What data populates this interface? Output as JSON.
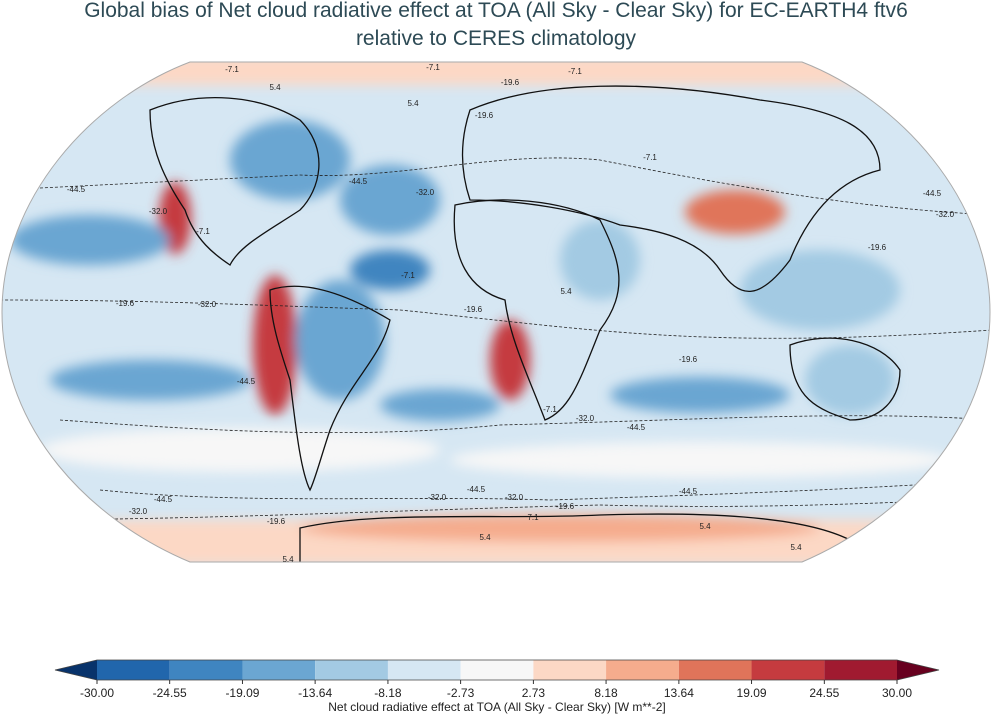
{
  "title": [
    "Global bias of Net cloud radiative effect at TOA (All Sky - Clear Sky) for EC-EARTH4 ftv6",
    "relative to CERES climatology"
  ],
  "map": {
    "contour_labels": [
      -7.1,
      -7.1,
      -7.1,
      5.4,
      5.4,
      -19.6,
      -19.6,
      -7.1,
      -44.5,
      {
        "value": -32,
        "label": "-32.0"
      },
      -44.5,
      {
        "value": -32,
        "label": "-32.0"
      },
      -7.1,
      -44.5,
      {
        "value": -32,
        "label": "-32.0"
      },
      -19.6,
      -19.6,
      {
        "value": -32,
        "label": "-32.0"
      },
      -7.1,
      -19.6,
      5.4,
      -19.6,
      -44.5,
      -7.1,
      {
        "value": -32,
        "label": "-32.0"
      },
      -44.5,
      -44.5,
      {
        "value": -32,
        "label": "-32.0"
      },
      {
        "value": -32,
        "label": "-32.0"
      },
      -44.5,
      {
        "value": -32,
        "label": "-32.0"
      },
      -19.6,
      -44.5,
      -19.6,
      7.1,
      5.4,
      5.4,
      5.4,
      5.4
    ]
  },
  "colorbar": {
    "label": "Net cloud radiative effect at TOA (All Sky - Clear Sky) [W m**-2]",
    "lim": [
      -30,
      30
    ],
    "ticks": [
      {
        "value": -30,
        "label": "-30.00"
      },
      {
        "value": -24.55,
        "label": "-24.55"
      },
      {
        "value": -19.09,
        "label": "-19.09"
      },
      {
        "value": -13.64,
        "label": "-13.64"
      },
      {
        "value": -8.18,
        "label": "-8.18"
      },
      {
        "value": -2.73,
        "label": "-2.73"
      },
      {
        "value": 2.73,
        "label": "2.73"
      },
      {
        "value": 8.18,
        "label": "8.18"
      },
      {
        "value": 13.64,
        "label": "13.64"
      },
      {
        "value": 19.09,
        "label": "19.09"
      },
      {
        "value": 24.55,
        "label": "24.55"
      },
      {
        "value": 30,
        "label": "30.00"
      }
    ],
    "colors": [
      "#2166ac",
      "#3f85c0",
      "#6ba6d2",
      "#a3cae3",
      "#d6e7f3",
      "#f7f7f7",
      "#fcd8c5",
      "#f5ac8d",
      "#e0745a",
      "#c53b3f",
      "#a01a30"
    ],
    "extend_colors": [
      "#08336b",
      "#67001f"
    ]
  }
}
